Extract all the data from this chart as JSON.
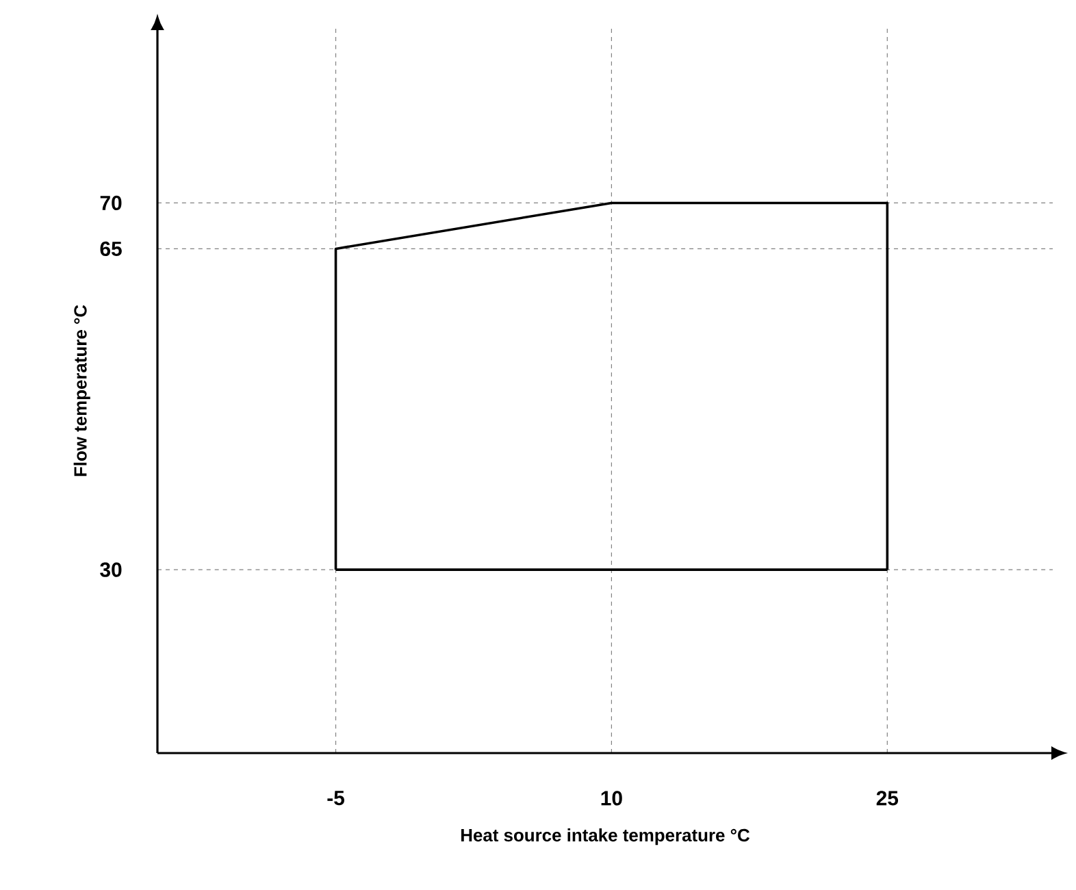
{
  "chart_data": {
    "type": "line",
    "xlabel": "Heat source intake temperature °C",
    "ylabel": "Flow temperature °C",
    "series": [
      {
        "color": "#000000",
        "x": [
          -5,
          -5,
          10,
          25,
          25
        ],
        "values": [
          30,
          65,
          70,
          70,
          30
        ]
      },
      {
        "color": "#000000",
        "x": [
          -5,
          25
        ],
        "values": [
          30,
          30
        ]
      }
    ],
    "xlim": [
      -14.7,
      34
    ],
    "ylim": [
      10,
      89
    ],
    "xticks": [
      -5,
      10,
      25
    ],
    "yticks": [
      30,
      65,
      70
    ],
    "grid": true,
    "marker": "none",
    "line_style": "solid"
  }
}
